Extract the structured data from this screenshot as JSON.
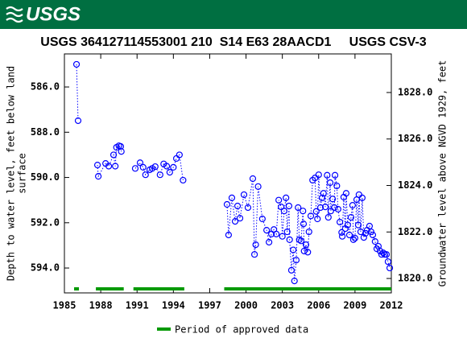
{
  "header": {
    "logo": "USGS"
  },
  "chart_data": {
    "type": "scatter",
    "title": "USGS 364127114553001 210  S14 E63 28AACD1     USGS CSV-3",
    "ylabel": [
      "Depth to water level, feet below land",
      "surface"
    ],
    "y2label": "Groundwater level above NGVD 1929, feet",
    "color": "#0000ff",
    "xlim": [
      1985,
      2012
    ],
    "xticks": [
      1985,
      1988,
      1991,
      1994,
      1997,
      2000,
      2003,
      2006,
      2009,
      2012
    ],
    "ylim": [
      584.54,
      595.1
    ],
    "inverted_y": true,
    "yticks": [
      {
        "value": 586,
        "label": "586.0"
      },
      {
        "value": 588,
        "label": "588.0"
      },
      {
        "value": 590,
        "label": "590.0"
      },
      {
        "value": 592,
        "label": "592.0"
      },
      {
        "value": 594,
        "label": "594.0"
      }
    ],
    "y2lim": [
      1819.38,
      1829.66
    ],
    "y2ticks": [
      {
        "value": 1820,
        "label": "1820.0"
      },
      {
        "value": 1822,
        "label": "1822.0"
      },
      {
        "value": 1824,
        "label": "1824.0"
      },
      {
        "value": 1826,
        "label": "1826.0"
      },
      {
        "value": 1828,
        "label": "1828.0"
      }
    ],
    "x": [
      1986.0,
      1986.13,
      1987.73,
      1987.8,
      1988.4,
      1988.66,
      1989.06,
      1989.2,
      1989.3,
      1989.5,
      1989.65,
      1989.7,
      1990.85,
      1991.25,
      1991.5,
      1991.7,
      1992.05,
      1992.25,
      1992.5,
      1992.9,
      1993.2,
      1993.45,
      1993.7,
      1994.0,
      1994.25,
      1994.5,
      1994.8,
      1998.43,
      1998.56,
      1998.83,
      1999.1,
      1999.3,
      1999.5,
      1999.83,
      2000.16,
      2000.56,
      2000.7,
      2000.8,
      2001.0,
      2001.35,
      2001.7,
      2001.9,
      2002.1,
      2002.3,
      2002.5,
      2002.7,
      2002.9,
      2003.0,
      2003.15,
      2003.3,
      2003.4,
      2003.55,
      2003.6,
      2003.75,
      2003.9,
      2004.0,
      2004.15,
      2004.3,
      2004.4,
      2004.55,
      2004.7,
      2004.75,
      2004.8,
      2004.95,
      2005.1,
      2005.2,
      2005.35,
      2005.5,
      2005.7,
      2005.8,
      2005.9,
      2006.0,
      2006.15,
      2006.28,
      2006.4,
      2006.55,
      2006.7,
      2006.8,
      2006.95,
      2007.0,
      2007.15,
      2007.3,
      2007.35,
      2007.5,
      2007.6,
      2007.75,
      2007.9,
      2007.95,
      2008.07,
      2008.2,
      2008.27,
      2008.4,
      2008.54,
      2008.67,
      2008.8,
      2008.87,
      2009.0,
      2009.14,
      2009.27,
      2009.33,
      2009.47,
      2009.6,
      2009.73,
      2009.87,
      2010.0,
      2010.2,
      2010.33,
      2010.47,
      2010.66,
      2010.8,
      2010.93,
      2011.07,
      2011.2,
      2011.33,
      2011.46,
      2011.6,
      2011.73,
      2011.87
    ],
    "values": [
      585.0,
      587.49,
      589.45,
      589.95,
      589.38,
      589.5,
      589.0,
      589.5,
      588.67,
      588.6,
      588.63,
      588.85,
      589.6,
      589.35,
      589.55,
      589.88,
      589.66,
      589.6,
      589.52,
      589.88,
      589.4,
      589.5,
      589.77,
      589.55,
      589.16,
      589.0,
      590.12,
      591.19,
      592.54,
      590.9,
      591.94,
      591.26,
      591.8,
      590.76,
      591.33,
      590.05,
      593.4,
      592.97,
      590.4,
      591.83,
      592.33,
      592.86,
      592.5,
      592.3,
      592.5,
      591.0,
      591.3,
      592.6,
      591.48,
      590.9,
      592.4,
      591.26,
      592.75,
      594.1,
      593.2,
      594.57,
      593.65,
      591.33,
      592.75,
      592.8,
      591.48,
      592.05,
      593.25,
      592.97,
      593.3,
      592.4,
      591.7,
      590.12,
      590.02,
      591.5,
      591.83,
      589.88,
      591.33,
      590.9,
      590.7,
      591.3,
      589.9,
      591.76,
      590.23,
      591.48,
      590.95,
      591.33,
      589.9,
      590.37,
      591.4,
      591.97,
      592.43,
      592.6,
      590.87,
      592.26,
      590.7,
      592.1,
      592.54,
      591.76,
      591.23,
      592.75,
      592.68,
      590.98,
      592.1,
      590.76,
      592.4,
      590.9,
      592.65,
      592.47,
      592.33,
      592.15,
      592.4,
      592.54,
      592.83,
      593.15,
      593.04,
      593.25,
      593.4,
      593.33,
      593.4,
      593.4,
      593.72,
      594.0
    ],
    "approved": {
      "name": "Period of approved data",
      "color": "#009900",
      "periods": [
        [
          1985.8,
          1986.2
        ],
        [
          1987.6,
          1989.9
        ],
        [
          1990.7,
          1994.9
        ],
        [
          1998.2,
          2012.0
        ]
      ]
    }
  }
}
